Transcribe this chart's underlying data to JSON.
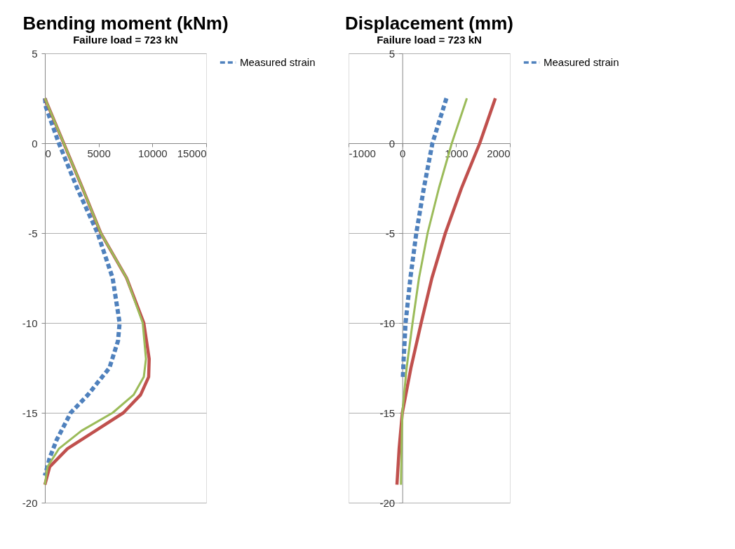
{
  "chart_data": [
    {
      "type": "line",
      "title": "Bending moment (kNm)",
      "subtitle": "Failure load = 723 kN",
      "xlim": [
        0,
        15000
      ],
      "xticks": [
        0,
        5000,
        10000,
        15000
      ],
      "ylim": [
        -20,
        5
      ],
      "yticks": [
        -20,
        -15,
        -10,
        -5,
        0,
        5
      ],
      "grid": "y",
      "legend": "right",
      "series": [
        {
          "name": "Measured strain",
          "color": "#4f81bd",
          "line_style": "dashed",
          "x": [
            0,
            100,
            1300,
            3000,
            4900,
            6300,
            6950,
            6800,
            6000,
            4000,
            2400,
            1100,
            450,
            0
          ],
          "values": [
            2.5,
            2,
            0,
            -2.5,
            -5,
            -7.5,
            -10,
            -11,
            -12.5,
            -14,
            -15,
            -16.5,
            -17.5,
            -18.5
          ]
        },
        {
          "color": "#c0504d",
          "line_style": "solid",
          "x": [
            0,
            1750,
            3500,
            5200,
            7600,
            9200,
            9700,
            9650,
            8900,
            7300,
            4700,
            2100,
            450,
            0
          ],
          "values": [
            2.5,
            0,
            -2.5,
            -5,
            -7.5,
            -10,
            -12,
            -13,
            -14,
            -15,
            -16,
            -17,
            -18,
            -19
          ]
        },
        {
          "color": "#9bbb59",
          "line_style": "solid",
          "x": [
            0,
            1750,
            3500,
            5200,
            7600,
            9100,
            9400,
            9200,
            8250,
            6300,
            3400,
            1300,
            250,
            0
          ],
          "values": [
            2.5,
            0,
            -2.5,
            -5,
            -7.5,
            -10,
            -12,
            -13,
            -14,
            -15,
            -16,
            -17,
            -18,
            -19
          ]
        }
      ]
    },
    {
      "type": "line",
      "title": "Displacement (mm)",
      "subtitle": "Failure load = 723 kN",
      "xlim": [
        -1000,
        2000
      ],
      "xticks": [
        -1000,
        0,
        1000,
        2000
      ],
      "ylim": [
        -20,
        5
      ],
      "yticks": [
        -20,
        -15,
        -10,
        -5,
        0,
        5
      ],
      "grid": "y",
      "legend": "right",
      "series": [
        {
          "name": "Measured strain",
          "color": "#4f81bd",
          "line_style": "dashed",
          "x": [
            820,
            560,
            400,
            260,
            150,
            60,
            25,
            10
          ],
          "values": [
            2.5,
            0,
            -2.5,
            -5,
            -7.5,
            -10,
            -12,
            -13
          ]
        },
        {
          "color": "#c0504d",
          "line_style": "solid",
          "x": [
            1730,
            1440,
            1100,
            800,
            550,
            350,
            160,
            0,
            -60,
            -100
          ],
          "values": [
            2.5,
            0,
            -2.5,
            -5,
            -7.5,
            -10,
            -12.5,
            -15,
            -17,
            -19
          ]
        },
        {
          "color": "#9bbb59",
          "line_style": "solid",
          "x": [
            1200,
            920,
            680,
            470,
            310,
            190,
            80,
            0,
            -15,
            -25
          ],
          "values": [
            2.5,
            0,
            -2.5,
            -5,
            -7.5,
            -10,
            -12.5,
            -15,
            -17,
            -19
          ]
        }
      ]
    }
  ]
}
